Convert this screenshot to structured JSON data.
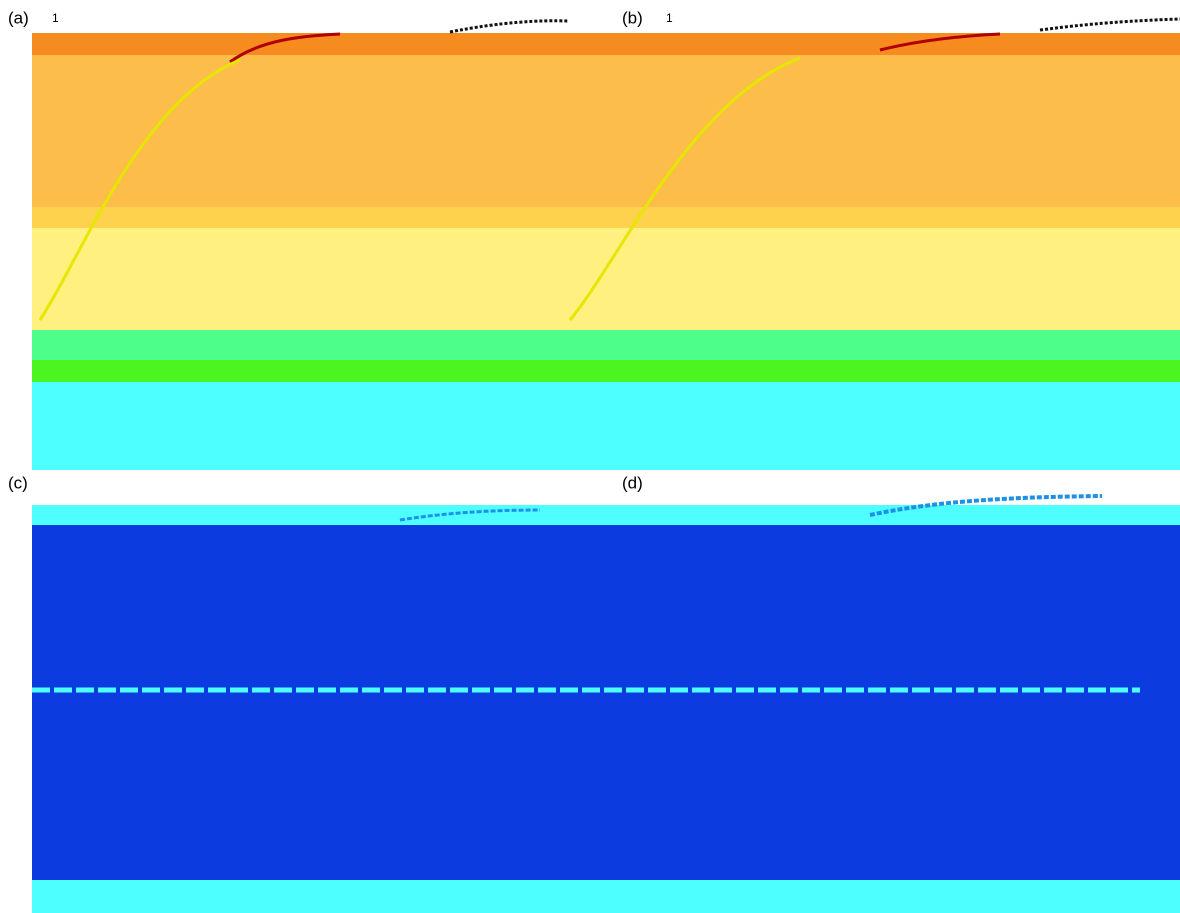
{
  "panels": [
    {
      "label": "(a)",
      "tick": "1"
    },
    {
      "label": "(b)",
      "tick": "1"
    },
    {
      "label": "(c)"
    },
    {
      "label": "(d)"
    }
  ]
}
